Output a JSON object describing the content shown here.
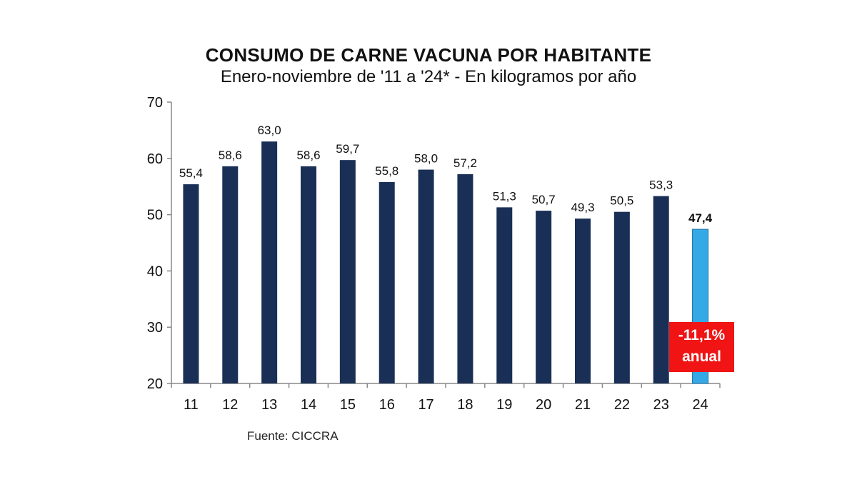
{
  "chart_data": {
    "type": "bar",
    "title": "CONSUMO DE CARNE VACUNA POR HABITANTE",
    "subtitle": "Enero-noviembre de '11 a '24* - En kilogramos por año",
    "categories": [
      "11",
      "12",
      "13",
      "14",
      "15",
      "16",
      "17",
      "18",
      "19",
      "20",
      "21",
      "22",
      "23",
      "24"
    ],
    "values": [
      55.4,
      58.6,
      63.0,
      58.6,
      59.7,
      55.8,
      58.0,
      57.2,
      51.3,
      50.7,
      49.3,
      50.5,
      53.3,
      47.4
    ],
    "value_labels": [
      "55,4",
      "58,6",
      "63,0",
      "58,6",
      "59,7",
      "55,8",
      "58,0",
      "57,2",
      "51,3",
      "50,7",
      "49,3",
      "50,5",
      "53,3",
      "47,4"
    ],
    "ylim": [
      20,
      70
    ],
    "y_ticks": [
      20,
      30,
      40,
      50,
      60,
      70
    ],
    "y_tick_labels": [
      "20",
      "30",
      "40",
      "50",
      "60",
      "70"
    ],
    "grid": false,
    "colors": {
      "bar": "#1a2f55",
      "highlight_bar": "#35a9e6",
      "badge": "#f01414",
      "axis": "#888888",
      "text": "#111111"
    },
    "highlight_index": 13,
    "annotation": {
      "line1": "-11,1%",
      "line2": "anual"
    },
    "source": "Fuente: CICCRA"
  }
}
